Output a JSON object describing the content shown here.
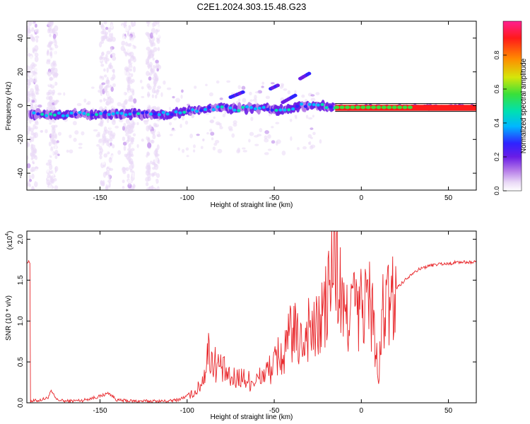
{
  "figure": {
    "title": "C2E1.2024.303.15.48.G23"
  },
  "colors": {
    "snr_line": "#e8262a",
    "ridge_core": "#ff1010",
    "colormap": [
      "#ffffff",
      "#e9d8f6",
      "#b57be8",
      "#6a1de6",
      "#2f23ff",
      "#00b7ff",
      "#00e0b0",
      "#39e03a",
      "#d6e60a",
      "#ff8a00",
      "#ff1a1a",
      "#ff2090"
    ]
  },
  "chart_data": [
    {
      "type": "heatmap",
      "xlabel": "Height of straight line (km)",
      "ylabel": "Frequency (Hz)",
      "xlim": [
        -192,
        66
      ],
      "ylim": [
        -50,
        50
      ],
      "x_ticks": [
        -150,
        -100,
        -50,
        0,
        50
      ],
      "y_ticks": [
        -40,
        -20,
        0,
        20,
        40
      ],
      "grid": false,
      "ridge": {
        "description_points": [
          {
            "x": -190,
            "y": -5
          },
          {
            "x": -160,
            "y": -5
          },
          {
            "x": -130,
            "y": -5
          },
          {
            "x": -110,
            "y": -5
          },
          {
            "x": -95,
            "y": -3
          },
          {
            "x": -80,
            "y": -1
          },
          {
            "x": -70,
            "y": -2
          },
          {
            "x": -55,
            "y": -1
          },
          {
            "x": -45,
            "y": -3
          },
          {
            "x": -35,
            "y": 0
          },
          {
            "x": -25,
            "y": 0
          },
          {
            "x": -15,
            "y": -1
          },
          {
            "x": 0,
            "y": -1
          },
          {
            "x": 20,
            "y": -1
          },
          {
            "x": 40,
            "y": -1
          },
          {
            "x": 65,
            "y": -1
          }
        ]
      },
      "colorbar": {
        "label": "Normalized spectral amplitude",
        "range": [
          0,
          1
        ],
        "ticks": [
          0.0,
          0.2,
          0.4,
          0.6,
          0.8
        ]
      }
    },
    {
      "type": "line",
      "xlabel": "Height of straight line (km)",
      "ylabel": "SNR (10 * v/v)",
      "y_multiplier_label": "(x10",
      "y_multiplier_exponent": "4",
      "y_multiplier_close": ")",
      "xlim": [
        -192,
        66
      ],
      "ylim": [
        0,
        2.1
      ],
      "x_ticks": [
        -150,
        -100,
        -50,
        0,
        50
      ],
      "y_ticks": [
        0.0,
        0.5,
        1.0,
        1.5,
        2.0
      ],
      "grid": false,
      "series": [
        {
          "x": [
            -190,
            -185,
            -180,
            -178,
            -175,
            -170,
            -160,
            -150,
            -145,
            -140,
            -130,
            -120,
            -110,
            -105,
            -100,
            -95,
            -92,
            -90,
            -88,
            -85,
            -82,
            -78,
            -75,
            -70,
            -65,
            -60,
            -55,
            -50,
            -47,
            -45,
            -42,
            -40,
            -38,
            -35,
            -32,
            -30,
            -28,
            -25,
            -22,
            -20,
            -18,
            -16,
            -15,
            -14,
            -13,
            -12,
            -10,
            -8,
            -5,
            -2,
            0,
            3,
            6,
            8,
            10,
            12,
            15,
            20,
            25,
            30,
            35,
            40,
            45,
            50,
            55,
            60,
            65
          ],
          "y": [
            0.02,
            0.03,
            0.06,
            0.14,
            0.04,
            0.02,
            0.03,
            0.08,
            0.12,
            0.03,
            0.02,
            0.02,
            0.02,
            0.04,
            0.08,
            0.15,
            0.25,
            0.4,
            0.7,
            0.55,
            0.5,
            0.4,
            0.3,
            0.35,
            0.3,
            0.3,
            0.4,
            0.5,
            0.7,
            0.55,
            0.8,
            1.0,
            0.9,
            0.8,
            0.9,
            1.1,
            0.9,
            1.0,
            1.2,
            1.3,
            1.6,
            1.8,
            2.1,
            1.7,
            1.4,
            1.5,
            1.1,
            1.2,
            1.4,
            1.15,
            1.3,
            1.4,
            1.3,
            0.8,
            0.25,
            1.2,
            1.3,
            1.4,
            1.5,
            1.6,
            1.65,
            1.68,
            1.7,
            1.7,
            1.72,
            1.72,
            1.72
          ]
        }
      ]
    }
  ]
}
